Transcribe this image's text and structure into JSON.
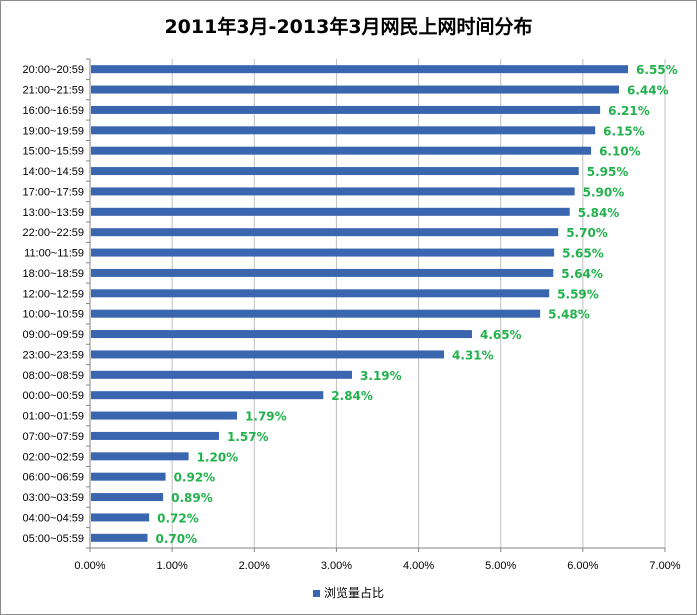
{
  "chart_data": {
    "type": "bar",
    "orientation": "horizontal",
    "title": "2011年3月-2013年3月网民上网时间分布",
    "categories": [
      "20:00~20:59",
      "21:00~21:59",
      "16:00~16:59",
      "19:00~19:59",
      "15:00~15:59",
      "14:00~14:59",
      "17:00~17:59",
      "13:00~13:59",
      "22:00~22:59",
      "11:00~11:59",
      "18:00~18:59",
      "12:00~12:59",
      "10:00~10:59",
      "09:00~09:59",
      "23:00~23:59",
      "08:00~08:59",
      "00:00~00:59",
      "01:00~01:59",
      "07:00~07:59",
      "02:00~02:59",
      "06:00~06:59",
      "03:00~03:59",
      "04:00~04:59",
      "05:00~05:59"
    ],
    "series": [
      {
        "name": "浏览量占比",
        "values": [
          6.55,
          6.44,
          6.21,
          6.15,
          6.1,
          5.95,
          5.9,
          5.84,
          5.7,
          5.65,
          5.64,
          5.59,
          5.48,
          4.65,
          4.31,
          3.19,
          2.84,
          1.79,
          1.57,
          1.2,
          0.92,
          0.89,
          0.72,
          0.7
        ],
        "data_labels": [
          "6.55%",
          "6.44%",
          "6.21%",
          "6.15%",
          "6.10%",
          "5.95%",
          "5.90%",
          "5.84%",
          "5.70%",
          "5.65%",
          "5.64%",
          "5.59%",
          "5.48%",
          "4.65%",
          "4.31%",
          "3.19%",
          "2.84%",
          "1.79%",
          "1.57%",
          "1.20%",
          "0.92%",
          "0.89%",
          "0.72%",
          "0.70%"
        ]
      }
    ],
    "x_ticks": [
      "0.00%",
      "1.00%",
      "2.00%",
      "3.00%",
      "4.00%",
      "5.00%",
      "6.00%",
      "7.00%"
    ],
    "xlim": [
      0,
      7
    ],
    "grid": "vertical",
    "legend_position": "bottom",
    "colors": {
      "bar": "#3a66b0",
      "data_label": "#22b14c",
      "grid": "#c0c0c0"
    }
  }
}
